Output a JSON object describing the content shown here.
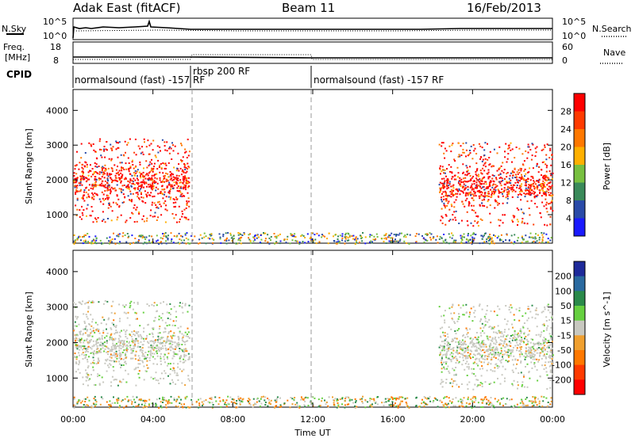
{
  "header": {
    "station": "Adak East (fitACF)",
    "beam": "Beam 11",
    "date": "16/Feb/2013"
  },
  "nsky_panel": {
    "left_label": "N.Sky",
    "left_ticks": [
      "10^5",
      "10^0"
    ],
    "right_label": "N.Search",
    "right_ticks": [
      "10^5",
      "10^0"
    ]
  },
  "freq_panel": {
    "left_label_1": "Freq.",
    "left_label_2": "[MHz]",
    "left_ticks": [
      "18",
      "8"
    ],
    "right_label": "Nave",
    "right_ticks": [
      "60",
      "0"
    ]
  },
  "cpid": {
    "label": "CPID",
    "programs": [
      {
        "name": "normalsound (fast) -157 RF",
        "start_hour": 0,
        "end_hour": 6
      },
      {
        "name": "rbsp 200 RF",
        "start_hour": 6,
        "end_hour": 12
      },
      {
        "name": "normalsound (fast) -157 RF",
        "start_hour": 12,
        "end_hour": 24
      }
    ]
  },
  "x_axis": {
    "label": "Time UT",
    "ticks": [
      "00:00",
      "04:00",
      "08:00",
      "12:00",
      "16:00",
      "20:00",
      "00:00"
    ],
    "tick_hours": [
      0,
      4,
      8,
      12,
      16,
      20,
      24
    ]
  },
  "power_panel": {
    "ylabel": "Slant Range [km]",
    "yticks": [
      "4000",
      "3000",
      "2000",
      "1000"
    ],
    "colorbar_label": "Power [dB]",
    "colorbar_ticks": [
      "28",
      "24",
      "20",
      "16",
      "12",
      "8",
      "4"
    ],
    "colors": [
      "#ff0000",
      "#ff3a00",
      "#ff7800",
      "#ffb000",
      "#78c040",
      "#3a8a5a",
      "#2a4aa8",
      "#1a1aff"
    ]
  },
  "velocity_panel": {
    "ylabel": "Slant Range [km]",
    "yticks": [
      "4000",
      "3000",
      "2000",
      "1000"
    ],
    "colorbar_label": "Velocity [m s^-1]",
    "colorbar_ticks": [
      "200",
      "100",
      "50",
      "15",
      "-15",
      "-50",
      "-100",
      "-200"
    ],
    "colors": [
      "#1e2a9a",
      "#2a6aa0",
      "#2a8a4a",
      "#66d040",
      "#c8c8c0",
      "#f0a030",
      "#ff7800",
      "#ff3a00",
      "#ff0000"
    ]
  },
  "chart_data": {
    "type": "heatmap",
    "x_range_hours": [
      0,
      24
    ],
    "y_range_km": [
      180,
      4600
    ],
    "vertical_markers_hours": [
      6,
      12
    ],
    "echo_regions": [
      {
        "start_hour": 0.0,
        "end_hour": 5.8,
        "range_km": [
          800,
          3200
        ],
        "dominant_power_db": 28,
        "dominant_velocity": -15
      },
      {
        "start_hour": 18.3,
        "end_hour": 24.0,
        "range_km": [
          700,
          3100
        ],
        "dominant_power_db": 24,
        "dominant_velocity": -15
      },
      {
        "start_hour": 0.0,
        "end_hour": 24.0,
        "range_km": [
          180,
          500
        ],
        "dominant_power_db": 8,
        "dominant_velocity": -50
      }
    ]
  }
}
